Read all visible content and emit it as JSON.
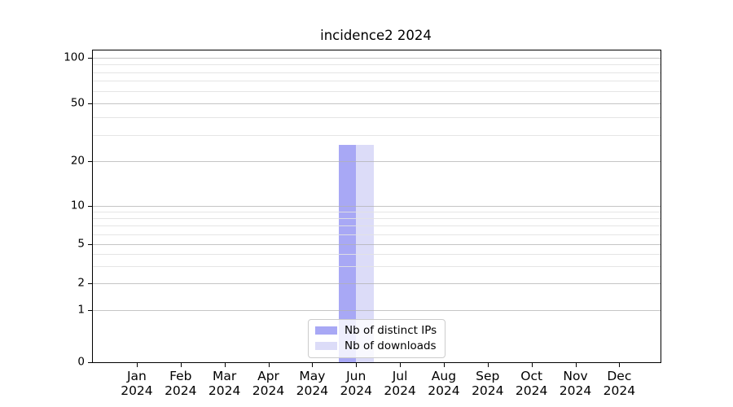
{
  "chart_data": {
    "type": "bar",
    "title": "incidence2 2024",
    "categories": [
      {
        "line1": "Jan",
        "line2": "2024"
      },
      {
        "line1": "Feb",
        "line2": "2024"
      },
      {
        "line1": "Mar",
        "line2": "2024"
      },
      {
        "line1": "Apr",
        "line2": "2024"
      },
      {
        "line1": "May",
        "line2": "2024"
      },
      {
        "line1": "Jun",
        "line2": "2024"
      },
      {
        "line1": "Jul",
        "line2": "2024"
      },
      {
        "line1": "Aug",
        "line2": "2024"
      },
      {
        "line1": "Sep",
        "line2": "2024"
      },
      {
        "line1": "Oct",
        "line2": "2024"
      },
      {
        "line1": "Nov",
        "line2": "2024"
      },
      {
        "line1": "Dec",
        "line2": "2024"
      }
    ],
    "series": [
      {
        "name": "Nb of distinct IPs",
        "color": "#a8a8f5",
        "values": [
          0,
          0,
          0,
          0,
          0,
          26,
          0,
          0,
          0,
          0,
          0,
          0
        ]
      },
      {
        "name": "Nb of downloads",
        "color": "#dcdcf8",
        "values": [
          0,
          0,
          0,
          0,
          0,
          26,
          0,
          0,
          0,
          0,
          0,
          0
        ]
      }
    ],
    "yaxis": {
      "scale": "symlog-like",
      "major_ticks": [
        0,
        1,
        2,
        5,
        10,
        20,
        50,
        100
      ],
      "minor_gridlines": [
        3,
        4,
        6,
        7,
        8,
        9,
        30,
        40,
        60,
        70,
        80,
        90
      ],
      "ylim": [
        0,
        110
      ]
    },
    "xlabel": "",
    "ylabel": "",
    "grid": "horizontal-both-major-and-minor",
    "legend": {
      "position": "lower center"
    },
    "colors": {
      "grid_major": "#b2b2b2",
      "grid_minor": "#e2e2e2",
      "spine": "#000000",
      "legend_border": "#cccccc",
      "legend_background": "rgba(255,255,255,0.8)"
    }
  }
}
